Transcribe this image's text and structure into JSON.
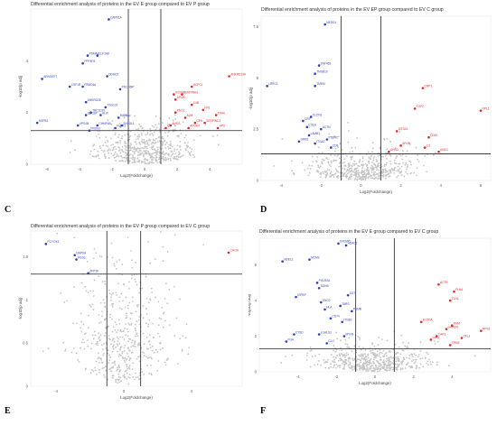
{
  "chart_data": [
    {
      "type": "scatter",
      "panel_letter": "C",
      "title": "Differential enrichment analysis of proteins in the EV E group compared to EV P group",
      "xlabel": "Log2(Foldchange)",
      "ylabel": "-log10(p adj)",
      "xlim": [
        -7,
        6
      ],
      "ylim": [
        0,
        6
      ],
      "xticks": [
        -6,
        -4,
        -2,
        0,
        2,
        4
      ],
      "yticks": [
        0,
        2,
        4
      ],
      "hline": 1.3,
      "vlines": [
        -1,
        1
      ],
      "colors": {
        "down": "#2b3fc0",
        "up": "#e02828",
        "ns": "#c4c4c4"
      },
      "down": [
        {
          "x": -2.2,
          "y": 5.6,
          "label": "CAPN1A"
        },
        {
          "x": -3.5,
          "y": 4.2,
          "label": "PSMA2"
        },
        {
          "x": -2.9,
          "y": 4.2,
          "label": "ELF2AK"
        },
        {
          "x": -3.8,
          "y": 3.9,
          "label": "PPP4R1"
        },
        {
          "x": -6.3,
          "y": 3.3,
          "label": "ARHGEF7"
        },
        {
          "x": -4.6,
          "y": 3.0,
          "label": "CSF1R"
        },
        {
          "x": -2.3,
          "y": 3.4,
          "label": "DDHD2"
        },
        {
          "x": -3.8,
          "y": 3.0,
          "label": "FRMD4A"
        },
        {
          "x": -1.5,
          "y": 2.9,
          "label": "PDCD6IP"
        },
        {
          "x": -3.6,
          "y": 2.4,
          "label": "ANKRD28"
        },
        {
          "x": -2.4,
          "y": 2.2,
          "label": "TSG101"
        },
        {
          "x": -3.3,
          "y": 2.0,
          "label": "TBC1D10"
        },
        {
          "x": -2.7,
          "y": 1.9,
          "label": "ALIX"
        },
        {
          "x": -6.6,
          "y": 1.6,
          "label": "HSPB1"
        },
        {
          "x": -3.6,
          "y": 1.9,
          "label": "SDCBP"
        },
        {
          "x": -1.6,
          "y": 1.8,
          "label": "RAB5A"
        },
        {
          "x": -4.1,
          "y": 1.5,
          "label": "VPS4B"
        },
        {
          "x": -2.9,
          "y": 1.5,
          "label": "CHMP4B"
        },
        {
          "x": -1.4,
          "y": 1.5,
          "label": "SH3GL1"
        },
        {
          "x": -3.4,
          "y": 1.3,
          "label": "PRDX2"
        },
        {
          "x": -1.8,
          "y": 1.4,
          "label": "FLOT1"
        }
      ],
      "up": [
        {
          "x": 5.2,
          "y": 3.4,
          "label": "ANKRD13A"
        },
        {
          "x": 2.9,
          "y": 3.0,
          "label": "HCFC1"
        },
        {
          "x": 1.8,
          "y": 2.7,
          "label": "GSTA3"
        },
        {
          "x": 2.3,
          "y": 2.7,
          "label": "SERPINA3"
        },
        {
          "x": 1.9,
          "y": 2.5,
          "label": "APOB"
        },
        {
          "x": 2.9,
          "y": 2.3,
          "label": "C4B"
        },
        {
          "x": 3.6,
          "y": 2.1,
          "label": "FN1"
        },
        {
          "x": 1.9,
          "y": 2.0,
          "label": "KNG1"
        },
        {
          "x": 4.4,
          "y": 1.9,
          "label": "ITIH4"
        },
        {
          "x": 2.5,
          "y": 1.8,
          "label": "A2M"
        },
        {
          "x": 3.1,
          "y": 1.6,
          "label": "CFB"
        },
        {
          "x": 3.7,
          "y": 1.6,
          "label": "SERPINC1"
        },
        {
          "x": 1.6,
          "y": 1.5,
          "label": "AHSG"
        },
        {
          "x": 2.7,
          "y": 1.4,
          "label": "APOA4"
        },
        {
          "x": 4.5,
          "y": 1.4,
          "label": "HPX"
        },
        {
          "x": 1.3,
          "y": 1.4,
          "label": "CP"
        }
      ]
    },
    {
      "type": "scatter",
      "panel_letter": "D",
      "title": "Differential enrichment analysis of proteins in the EV EP group compared to EV C group",
      "xlabel": "Log2(Foldchange)",
      "ylabel": "-log10(p adj)",
      "xlim": [
        -5,
        6.5
      ],
      "ylim": [
        0,
        8
      ],
      "xticks": [
        -4,
        -2,
        0,
        2,
        4,
        6
      ],
      "yticks": [
        0,
        2.5,
        5,
        7.5
      ],
      "hline": 1.3,
      "vlines": [
        -1,
        1
      ],
      "colors": {
        "down": "#2b3fc0",
        "up": "#e02828",
        "ns": "#c4c4c4"
      },
      "down": [
        {
          "x": -1.8,
          "y": 7.6,
          "label": "NEDD1"
        },
        {
          "x": -2.1,
          "y": 5.6,
          "label": "ZNF465"
        },
        {
          "x": -2.3,
          "y": 5.2,
          "label": "TMSB10"
        },
        {
          "x": -4.7,
          "y": 4.6,
          "label": "LRRC1"
        },
        {
          "x": -2.3,
          "y": 4.6,
          "label": "TMEM"
        },
        {
          "x": -2.5,
          "y": 3.1,
          "label": "CLCN1"
        },
        {
          "x": -2.9,
          "y": 2.9,
          "label": "CRP"
        },
        {
          "x": -2.7,
          "y": 2.6,
          "label": "COL6"
        },
        {
          "x": -2.0,
          "y": 2.5,
          "label": "ACTN"
        },
        {
          "x": -2.6,
          "y": 2.2,
          "label": "LAMB1"
        },
        {
          "x": -1.7,
          "y": 2.0,
          "label": "PTPRC"
        },
        {
          "x": -3.1,
          "y": 1.9,
          "label": "GRB2"
        },
        {
          "x": -2.3,
          "y": 1.8,
          "label": "ITGA2"
        },
        {
          "x": -1.5,
          "y": 1.6,
          "label": "CD9"
        }
      ],
      "up": [
        {
          "x": 3.1,
          "y": 4.5,
          "label": "CRP1"
        },
        {
          "x": 2.7,
          "y": 3.5,
          "label": "FGF2"
        },
        {
          "x": 6.0,
          "y": 3.4,
          "label": "RPL1"
        },
        {
          "x": 1.8,
          "y": 2.4,
          "label": "GSTA3"
        },
        {
          "x": 3.4,
          "y": 2.1,
          "label": "CD81"
        },
        {
          "x": 2.0,
          "y": 1.7,
          "label": "APOB"
        },
        {
          "x": 3.2,
          "y": 1.6,
          "label": "C3"
        },
        {
          "x": 3.9,
          "y": 1.4,
          "label": "KNG1"
        },
        {
          "x": 1.4,
          "y": 1.4,
          "label": "AHSG"
        }
      ]
    },
    {
      "type": "scatter",
      "panel_letter": "E",
      "title": "Differential enrichment analysis of proteins in the EV P group compared to EV C group",
      "xlabel": "Log2(Foldchange)",
      "ylabel": "-log10(p adj)",
      "xlim": [
        -5.5,
        7
      ],
      "ylim": [
        0,
        1.8
      ],
      "xticks": [
        -4,
        0,
        4
      ],
      "yticks": [
        0,
        0.5,
        1,
        1.5
      ],
      "hline": 1.3,
      "vlines": [
        -1,
        1
      ],
      "colors": {
        "down": "#2b3fc0",
        "up": "#e02828",
        "ns": "#c4c4c4"
      },
      "down": [
        {
          "x": -4.6,
          "y": 1.65,
          "label": "PCYOX1"
        },
        {
          "x": -2.9,
          "y": 1.52,
          "label": "NAPSA"
        },
        {
          "x": -2.8,
          "y": 1.47,
          "label": "REG1"
        },
        {
          "x": -2.1,
          "y": 1.31,
          "label": "ZFP36"
        }
      ],
      "up": [
        {
          "x": 6.2,
          "y": 1.55,
          "label": "CHGA"
        }
      ]
    },
    {
      "type": "scatter",
      "panel_letter": "F",
      "title": "Differential enrichment analysis of proteins in the EV E group compared to EV C group",
      "xlabel": "Log2(Foldchange)",
      "ylabel": "-log10(p adj)",
      "xlim": [
        -6,
        6
      ],
      "ylim": [
        0,
        7.5
      ],
      "xticks": [
        -4,
        -2,
        0,
        2,
        4
      ],
      "yticks": [
        0,
        2,
        4,
        6
      ],
      "hline": 1.3,
      "vlines": [
        -1,
        1
      ],
      "colors": {
        "down": "#2b3fc0",
        "up": "#e02828",
        "ns": "#c4c4c4"
      },
      "down": [
        {
          "x": -1.9,
          "y": 7.2,
          "label": "EFEMP1"
        },
        {
          "x": -1.5,
          "y": 7.1,
          "label": "HDAC2"
        },
        {
          "x": -4.8,
          "y": 6.2,
          "label": "NDEL1"
        },
        {
          "x": -3.4,
          "y": 6.3,
          "label": "MCM3"
        },
        {
          "x": -3.0,
          "y": 5.0,
          "label": "POLR2A"
        },
        {
          "x": -2.9,
          "y": 4.7,
          "label": "SDHB"
        },
        {
          "x": -4.1,
          "y": 4.2,
          "label": "IGFBP"
        },
        {
          "x": -1.4,
          "y": 4.3,
          "label": "CD7"
        },
        {
          "x": -2.8,
          "y": 3.9,
          "label": "ENO2"
        },
        {
          "x": -1.8,
          "y": 3.7,
          "label": "TARS"
        },
        {
          "x": -2.6,
          "y": 3.5,
          "label": "HLA"
        },
        {
          "x": -1.2,
          "y": 3.4,
          "label": "PSMB"
        },
        {
          "x": -2.3,
          "y": 3.0,
          "label": "CD74"
        },
        {
          "x": -1.7,
          "y": 2.8,
          "label": "ITGB2"
        },
        {
          "x": -4.2,
          "y": 2.1,
          "label": "CTSD"
        },
        {
          "x": -2.9,
          "y": 2.1,
          "label": "LGALS3"
        },
        {
          "x": -1.6,
          "y": 2.0,
          "label": "MYH9"
        },
        {
          "x": -4.6,
          "y": 1.7,
          "label": "FGA"
        },
        {
          "x": -2.5,
          "y": 1.6,
          "label": "CLU"
        }
      ],
      "up": [
        {
          "x": 3.3,
          "y": 4.9,
          "label": "ACTB"
        },
        {
          "x": 4.1,
          "y": 4.5,
          "label": "FLNA"
        },
        {
          "x": 3.9,
          "y": 4.0,
          "label": "TLN1"
        },
        {
          "x": 2.4,
          "y": 2.8,
          "label": "ALDOA"
        },
        {
          "x": 4.0,
          "y": 2.6,
          "label": "PKM"
        },
        {
          "x": 3.7,
          "y": 2.4,
          "label": "GAPDH"
        },
        {
          "x": 5.5,
          "y": 2.3,
          "label": "RPS3"
        },
        {
          "x": 3.2,
          "y": 2.0,
          "label": "CAP1"
        },
        {
          "x": 4.5,
          "y": 1.9,
          "label": "CFL1"
        },
        {
          "x": 2.9,
          "y": 1.8,
          "label": "PFN1"
        },
        {
          "x": 3.9,
          "y": 1.5,
          "label": "TPM3"
        }
      ]
    }
  ]
}
